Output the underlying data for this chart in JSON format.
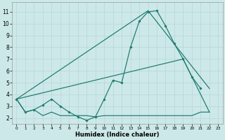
{
  "bg_color": "#cde8e8",
  "grid_color": "#b8d4d4",
  "line_color": "#1a7a6e",
  "xlabel": "Humidex (Indice chaleur)",
  "xlim": [
    -0.5,
    23.5
  ],
  "ylim": [
    1.5,
    11.8
  ],
  "yticks": [
    2,
    3,
    4,
    5,
    6,
    7,
    8,
    9,
    10,
    11
  ],
  "xticks": [
    0,
    1,
    2,
    3,
    4,
    5,
    6,
    7,
    8,
    9,
    10,
    11,
    12,
    13,
    14,
    15,
    16,
    17,
    18,
    19,
    20,
    21,
    22,
    23
  ],
  "curve_x": [
    0,
    1,
    2,
    3,
    4,
    5,
    6,
    7,
    8,
    9,
    10,
    11,
    12,
    13,
    14,
    15,
    16,
    17,
    18,
    19,
    20,
    21,
    22
  ],
  "curve_y": [
    3.6,
    2.5,
    2.7,
    3.1,
    3.6,
    3.0,
    2.5,
    2.1,
    1.8,
    2.1,
    3.6,
    5.2,
    5.0,
    8.0,
    10.2,
    11.0,
    11.1,
    9.8,
    8.3,
    7.0,
    5.5,
    4.5,
    null
  ],
  "flat_x": [
    0,
    1,
    2,
    3,
    4,
    5,
    6,
    7,
    8,
    9,
    10,
    11,
    12,
    13,
    14,
    15,
    16,
    17,
    18,
    19,
    20,
    21,
    22
  ],
  "flat_y": [
    3.6,
    2.5,
    2.7,
    2.2,
    2.5,
    2.2,
    2.2,
    2.2,
    2.2,
    2.1,
    2.2,
    2.2,
    2.2,
    2.2,
    2.2,
    2.2,
    2.2,
    2.2,
    2.2,
    2.2,
    2.2,
    2.5,
    2.5
  ],
  "upper_diag_x": [
    0,
    4,
    10,
    15,
    19,
    22
  ],
  "upper_diag_y": [
    3.6,
    3.6,
    3.6,
    11.1,
    7.0,
    4.5
  ],
  "lower_diag_x": [
    0,
    4,
    10,
    15,
    19,
    22
  ],
  "lower_diag_y": [
    3.6,
    3.6,
    3.6,
    7.0,
    6.5,
    2.5
  ]
}
